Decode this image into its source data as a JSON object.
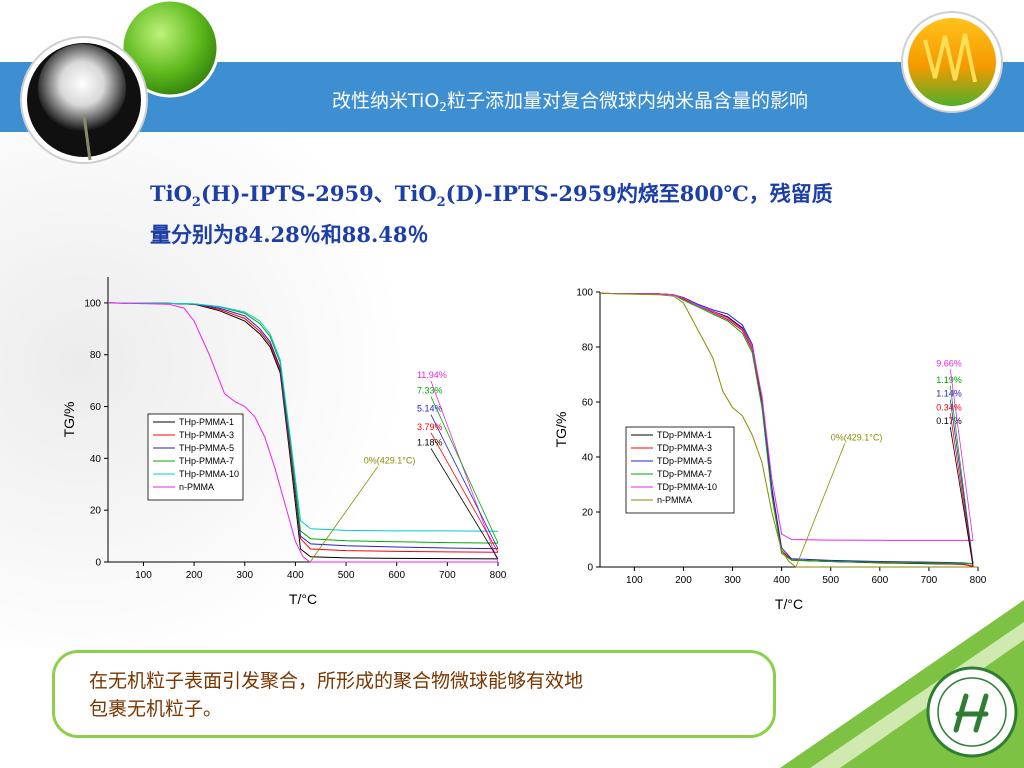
{
  "header": {
    "title_pre": "改性纳米TiO",
    "title_sub": "2",
    "title_post": "粒子添加量对复合微球内纳米晶含量的影响"
  },
  "subtitle": {
    "p1": "TiO",
    "s1": "2",
    "p2": "(H)-IPTS-2959、TiO",
    "s2": "2",
    "p3": "(D)-IPTS-2959灼烧至800℃，残留质",
    "line2": "量分别为84.28％和88.48％"
  },
  "callout": {
    "text_line1": "在无机粒子表面引发聚合，所形成的聚合物微球能够有效地",
    "text_line2": "包裹无机粒子。"
  },
  "colors": {
    "banner": "#3e8fd2",
    "callout_border": "#8ccf4a",
    "subtitle": "#1c3ea8",
    "callout_text": "#7a3600"
  },
  "chart_data": [
    {
      "type": "line",
      "xlabel": "T/°C",
      "ylabel": "TG/%",
      "xlim": [
        30,
        800
      ],
      "ylim": [
        0,
        110
      ],
      "xticks": [
        100,
        200,
        300,
        400,
        500,
        600,
        700,
        800
      ],
      "yticks": [
        0,
        20,
        40,
        60,
        80,
        100
      ],
      "legend_position": "center-left",
      "series": [
        {
          "name": "THp-PMMA-1",
          "color": "#000000",
          "x": [
            30,
            150,
            200,
            250,
            300,
            330,
            350,
            370,
            390,
            410,
            430,
            500,
            600,
            700,
            800
          ],
          "y": [
            100,
            99.8,
            99.5,
            97,
            93,
            88,
            83,
            73,
            40,
            5,
            2,
            1.6,
            1.4,
            1.3,
            1.2
          ]
        },
        {
          "name": "THp-PMMA-3",
          "color": "#ff0000",
          "x": [
            30,
            150,
            200,
            250,
            300,
            330,
            350,
            370,
            390,
            410,
            430,
            500,
            600,
            700,
            800
          ],
          "y": [
            100,
            99.8,
            99.5,
            97.5,
            94,
            89,
            84,
            74,
            42,
            9,
            5,
            4.4,
            4.1,
            3.9,
            3.8
          ]
        },
        {
          "name": "THp-PMMA-5",
          "color": "#2222cc",
          "x": [
            30,
            150,
            200,
            250,
            300,
            330,
            350,
            370,
            390,
            410,
            430,
            500,
            600,
            700,
            800
          ],
          "y": [
            100,
            99.8,
            99.5,
            98,
            95,
            90,
            85,
            75,
            44,
            10,
            7,
            6.3,
            5.8,
            5.4,
            5.1
          ]
        },
        {
          "name": "THp-PMMA-7",
          "color": "#00aa00",
          "x": [
            30,
            150,
            200,
            250,
            300,
            330,
            350,
            370,
            390,
            410,
            430,
            500,
            600,
            700,
            800
          ],
          "y": [
            100,
            99.8,
            99.6,
            98.5,
            96,
            92,
            87,
            77,
            46,
            12,
            9,
            8.2,
            7.8,
            7.5,
            7.3
          ]
        },
        {
          "name": "THp-PMMA-10",
          "color": "#00cccc",
          "x": [
            30,
            150,
            200,
            250,
            300,
            330,
            350,
            370,
            390,
            410,
            430,
            500,
            600,
            700,
            800
          ],
          "y": [
            100,
            99.8,
            99.6,
            98.6,
            96.5,
            93,
            88,
            78,
            48,
            16,
            12.8,
            12.2,
            12.0,
            12.0,
            11.9
          ]
        },
        {
          "name": "n-PMMA",
          "color": "#ee22ee",
          "x": [
            30,
            150,
            180,
            200,
            230,
            260,
            280,
            300,
            320,
            340,
            360,
            380,
            400,
            415,
            429.1,
            500,
            800
          ],
          "y": [
            100,
            99.5,
            98,
            93,
            80,
            65,
            62,
            60,
            56,
            48,
            36,
            22,
            8,
            2,
            0,
            0,
            0
          ]
        }
      ],
      "annotations": [
        {
          "text": "11.94%",
          "color": "#ee22ee",
          "x": 640,
          "y": 71
        },
        {
          "text": "7.33%",
          "color": "#00aa00",
          "x": 640,
          "y": 65
        },
        {
          "text": "5.14%",
          "color": "#2222cc",
          "x": 640,
          "y": 58
        },
        {
          "text": "3.79%",
          "color": "#ff0000",
          "x": 640,
          "y": 51
        },
        {
          "text": "1.18%",
          "color": "#000000",
          "x": 640,
          "y": 45
        },
        {
          "text": "0%(429.1°C)",
          "color": "#8a8a00",
          "x": 535,
          "y": 38
        }
      ]
    },
    {
      "type": "line",
      "xlabel": "T/°C",
      "ylabel": "TG/%",
      "xlim": [
        30,
        800
      ],
      "ylim": [
        0,
        100
      ],
      "xticks": [
        100,
        200,
        300,
        400,
        500,
        600,
        700,
        800
      ],
      "yticks": [
        0,
        20,
        40,
        60,
        80,
        100
      ],
      "legend_position": "center-left",
      "series": [
        {
          "name": "TDp-PMMA-1",
          "color": "#000000",
          "x": [
            30,
            150,
            180,
            200,
            230,
            260,
            290,
            320,
            340,
            360,
            380,
            400,
            420,
            500,
            600,
            700,
            770,
            790
          ],
          "y": [
            99.5,
            99.3,
            99,
            97.5,
            95,
            93,
            91,
            87,
            80,
            60,
            28,
            6,
            2.5,
            2,
            1.5,
            1.2,
            1,
            0.17
          ]
        },
        {
          "name": "TDp-PMMA-3",
          "color": "#ff0000",
          "x": [
            30,
            150,
            180,
            200,
            230,
            260,
            290,
            320,
            340,
            360,
            380,
            400,
            420,
            500,
            600,
            700,
            770,
            790
          ],
          "y": [
            99.5,
            99.3,
            99,
            97.5,
            95,
            92.5,
            90,
            86,
            79,
            59,
            27,
            6,
            2.5,
            2,
            1.6,
            1.3,
            1,
            0.34
          ]
        },
        {
          "name": "TDp-PMMA-5",
          "color": "#2222cc",
          "x": [
            30,
            150,
            180,
            200,
            230,
            260,
            290,
            320,
            340,
            360,
            380,
            400,
            420,
            500,
            600,
            700,
            770,
            790
          ],
          "y": [
            99.5,
            99.3,
            99,
            98,
            95.5,
            93.5,
            92,
            88,
            81,
            61,
            29,
            7,
            3,
            2.4,
            2,
            1.8,
            1.5,
            1.14
          ]
        },
        {
          "name": "TDp-PMMA-7",
          "color": "#00aa00",
          "x": [
            30,
            150,
            180,
            200,
            230,
            260,
            290,
            320,
            340,
            360,
            380,
            400,
            420,
            500,
            600,
            700,
            770,
            790
          ],
          "y": [
            99.5,
            99.3,
            99,
            97,
            94.5,
            92,
            89.5,
            85,
            78,
            58,
            26,
            5,
            2.5,
            2,
            1.7,
            1.4,
            1.3,
            1.19
          ]
        },
        {
          "name": "TDp-PMMA-10",
          "color": "#ee22ee",
          "x": [
            30,
            150,
            180,
            200,
            230,
            260,
            290,
            320,
            340,
            360,
            380,
            400,
            420,
            500,
            600,
            700,
            770,
            790
          ],
          "y": [
            99.5,
            99.3,
            99,
            97.8,
            95,
            93,
            90.5,
            86.5,
            80,
            62,
            32,
            12,
            10,
            9.8,
            9.7,
            9.66,
            9.66,
            9.66
          ]
        },
        {
          "name": "n-PMMA",
          "color": "#8a8a00",
          "x": [
            30,
            150,
            180,
            200,
            230,
            260,
            280,
            300,
            320,
            340,
            360,
            380,
            400,
            415,
            429.1,
            500,
            800
          ],
          "y": [
            99.5,
            99,
            98.5,
            96,
            86,
            76,
            64,
            58,
            55,
            48,
            38,
            20,
            6,
            2,
            0,
            0,
            0
          ]
        }
      ],
      "annotations": [
        {
          "text": "9.66%",
          "color": "#ee22ee",
          "x": 715,
          "y": 73
        },
        {
          "text": "1.19%",
          "color": "#00aa00",
          "x": 715,
          "y": 67
        },
        {
          "text": "1.14%",
          "color": "#2222cc",
          "x": 715,
          "y": 62
        },
        {
          "text": "0.34%",
          "color": "#ff0000",
          "x": 715,
          "y": 57
        },
        {
          "text": "0.17%",
          "color": "#000000",
          "x": 715,
          "y": 52
        },
        {
          "text": "0%(429.1°C)",
          "color": "#8a8a00",
          "x": 500,
          "y": 46
        }
      ]
    }
  ]
}
